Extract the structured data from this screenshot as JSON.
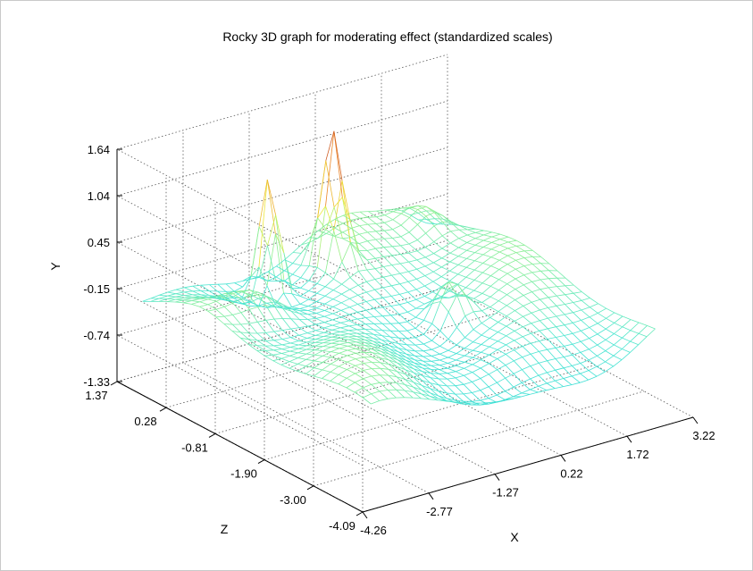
{
  "chart_data": {
    "type": "surface",
    "title": "Rocky 3D graph for moderating effect (standardized scales)",
    "xlabel": "X",
    "ylabel": "Y",
    "zlabel": "Z",
    "x_ticks": [
      "-4.26",
      "-2.77",
      "-1.27",
      "0.22",
      "1.72",
      "3.22"
    ],
    "y_ticks": [
      "-1.33",
      "-0.74",
      "-0.15",
      "0.45",
      "1.04",
      "1.64"
    ],
    "z_ticks": [
      "1.37",
      "0.28",
      "-0.81",
      "-1.90",
      "-3.00",
      "-4.09"
    ],
    "xlim": [
      -4.26,
      3.22
    ],
    "ylim": [
      -1.33,
      1.64
    ],
    "zlim": [
      -4.09,
      1.37
    ],
    "grid": true,
    "colormap": "jet (cyan to yellow to red)",
    "style": "wireframe mesh",
    "approx_peaks": [
      {
        "x": -1.6,
        "z": 0.9,
        "y": 1.55
      },
      {
        "x": -0.3,
        "z": 0.6,
        "y": 1.6
      },
      {
        "x": 0.1,
        "z": -0.8,
        "y": 0.5
      }
    ]
  }
}
